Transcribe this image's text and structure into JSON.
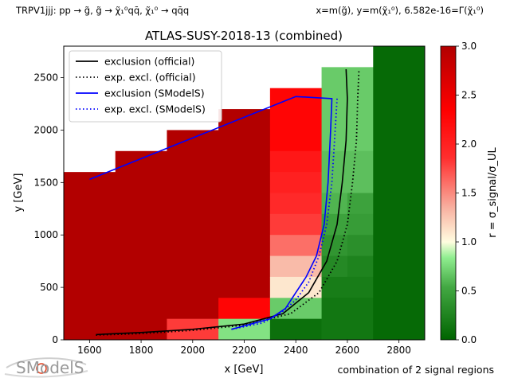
{
  "header": {
    "left": "TRPV1jjj: pp → g̃, g̃ → χ̃₁⁰qq̄, χ̃₁⁰ → qq̄q",
    "right": "x=m(g̃), y=m(χ̃₁⁰), 6.582e-16=Γ(χ̃₁⁰)"
  },
  "footer": {
    "note": "combination of 2 signal regions"
  },
  "logo": {
    "text": "SModelS"
  },
  "colors": {
    "official": "#000000",
    "smodels": "#0000ff",
    "frame": "#000000"
  },
  "chart_data": {
    "type": "heatmap",
    "title": "ATLAS-SUSY-2018-13 (combined)",
    "xlabel": "x [GeV]",
    "ylabel": "y [GeV]",
    "xlim": [
      1500,
      2900
    ],
    "ylim": [
      0,
      2800
    ],
    "xticks": [
      1600,
      1800,
      2000,
      2200,
      2400,
      2600,
      2800
    ],
    "yticks": [
      0,
      500,
      1000,
      1500,
      2000,
      2500
    ],
    "colorbar": {
      "label": "r = σ_signal/σ_UL",
      "range": [
        0,
        3
      ],
      "ticks": [
        0.0,
        0.5,
        1.0,
        1.5,
        2.0,
        2.5,
        3.0
      ]
    },
    "legend": {
      "placement": "top-left",
      "entries": [
        {
          "label": "exclusion (official)",
          "style": "solid",
          "color": "#000000"
        },
        {
          "label": "exp. excl. (official)",
          "style": "dotted",
          "color": "#000000"
        },
        {
          "label": "exclusion (SModelS)",
          "style": "solid",
          "color": "#0000ff"
        },
        {
          "label": "exp. excl. (SModelS)",
          "style": "dotted",
          "color": "#0000ff"
        }
      ]
    },
    "cells": [
      {
        "x0": 1500,
        "x1": 1700,
        "y0": 0,
        "y1": 1600,
        "r": 3.0
      },
      {
        "x0": 1700,
        "x1": 1900,
        "y0": 0,
        "y1": 1800,
        "r": 3.0
      },
      {
        "x0": 1900,
        "x1": 2100,
        "y0": 200,
        "y1": 2000,
        "r": 3.0
      },
      {
        "x0": 1900,
        "x1": 2100,
        "y0": 0,
        "y1": 200,
        "r": 1.8
      },
      {
        "x0": 2100,
        "x1": 2300,
        "y0": 400,
        "y1": 2200,
        "r": 3.0
      },
      {
        "x0": 2100,
        "x1": 2300,
        "y0": 200,
        "y1": 400,
        "r": 2.3
      },
      {
        "x0": 2100,
        "x1": 2300,
        "y0": 0,
        "y1": 200,
        "r": 0.8
      },
      {
        "x0": 2300,
        "x1": 2500,
        "y0": 1800,
        "y1": 2400,
        "r": 2.3
      },
      {
        "x0": 2300,
        "x1": 2500,
        "y0": 1600,
        "y1": 1800,
        "r": 2.1
      },
      {
        "x0": 2300,
        "x1": 2500,
        "y0": 1400,
        "y1": 1600,
        "r": 2.0
      },
      {
        "x0": 2300,
        "x1": 2500,
        "y0": 1200,
        "y1": 1400,
        "r": 1.9
      },
      {
        "x0": 2300,
        "x1": 2500,
        "y0": 1000,
        "y1": 1200,
        "r": 1.8
      },
      {
        "x0": 2300,
        "x1": 2500,
        "y0": 800,
        "y1": 1000,
        "r": 1.6
      },
      {
        "x0": 2300,
        "x1": 2500,
        "y0": 600,
        "y1": 800,
        "r": 1.3
      },
      {
        "x0": 2300,
        "x1": 2500,
        "y0": 400,
        "y1": 600,
        "r": 1.1
      },
      {
        "x0": 2300,
        "x1": 2500,
        "y0": 200,
        "y1": 400,
        "r": 0.7
      },
      {
        "x0": 2300,
        "x1": 2500,
        "y0": 0,
        "y1": 200,
        "r": 0.1
      },
      {
        "x0": 2500,
        "x1": 2600,
        "y0": 1800,
        "y1": 2600,
        "r": 0.7
      },
      {
        "x0": 2500,
        "x1": 2600,
        "y0": 1400,
        "y1": 1800,
        "r": 0.65
      },
      {
        "x0": 2500,
        "x1": 2600,
        "y0": 1200,
        "y1": 1400,
        "r": 0.6
      },
      {
        "x0": 2500,
        "x1": 2600,
        "y0": 1000,
        "y1": 1200,
        "r": 0.5
      },
      {
        "x0": 2500,
        "x1": 2600,
        "y0": 800,
        "y1": 1000,
        "r": 0.4
      },
      {
        "x0": 2500,
        "x1": 2600,
        "y0": 600,
        "y1": 800,
        "r": 0.3
      },
      {
        "x0": 2500,
        "x1": 2600,
        "y0": 400,
        "y1": 600,
        "r": 0.2
      },
      {
        "x0": 2500,
        "x1": 2600,
        "y0": 0,
        "y1": 400,
        "r": 0.15
      },
      {
        "x0": 2600,
        "x1": 2700,
        "y0": 1800,
        "y1": 2600,
        "r": 0.7
      },
      {
        "x0": 2600,
        "x1": 2700,
        "y0": 1400,
        "y1": 1800,
        "r": 0.65
      },
      {
        "x0": 2600,
        "x1": 2700,
        "y0": 1200,
        "y1": 1400,
        "r": 0.5
      },
      {
        "x0": 2600,
        "x1": 2700,
        "y0": 1000,
        "y1": 1200,
        "r": 0.45
      },
      {
        "x0": 2600,
        "x1": 2700,
        "y0": 800,
        "y1": 1000,
        "r": 0.35
      },
      {
        "x0": 2600,
        "x1": 2700,
        "y0": 600,
        "y1": 800,
        "r": 0.25
      },
      {
        "x0": 2600,
        "x1": 2700,
        "y0": 400,
        "y1": 600,
        "r": 0.2
      },
      {
        "x0": 2600,
        "x1": 2700,
        "y0": 0,
        "y1": 400,
        "r": 0.15
      },
      {
        "x0": 2700,
        "x1": 2900,
        "y0": 0,
        "y1": 2800,
        "r": 0.05
      }
    ],
    "series": [
      {
        "id": "official-obs",
        "x": [
          1625,
          1800,
          2000,
          2200,
          2350,
          2450,
          2520,
          2560,
          2580,
          2595,
          2600,
          2595
        ],
        "y": [
          50,
          70,
          100,
          150,
          250,
          450,
          750,
          1100,
          1500,
          1900,
          2300,
          2580
        ]
      },
      {
        "id": "official-exp",
        "x": [
          1625,
          1800,
          2000,
          2200,
          2380,
          2490,
          2560,
          2600,
          2620,
          2635,
          2640,
          2645
        ],
        "y": [
          45,
          60,
          90,
          140,
          250,
          450,
          750,
          1100,
          1500,
          1900,
          2300,
          2580
        ]
      },
      {
        "id": "smodels-obs",
        "x": [
          1600,
          2400,
          2540,
          2535,
          2525,
          2510,
          2480,
          2440,
          2400,
          2360,
          2300,
          2150
        ],
        "y": [
          1530,
          2320,
          2300,
          2000,
          1500,
          1100,
          800,
          600,
          450,
          300,
          200,
          100
        ]
      },
      {
        "id": "smodels-exp",
        "x": [
          2560,
          2550,
          2540,
          2520,
          2490,
          2450,
          2400,
          2340,
          2270,
          2150
        ],
        "y": [
          2300,
          1900,
          1500,
          1100,
          800,
          550,
          380,
          250,
          160,
          100
        ]
      }
    ]
  }
}
